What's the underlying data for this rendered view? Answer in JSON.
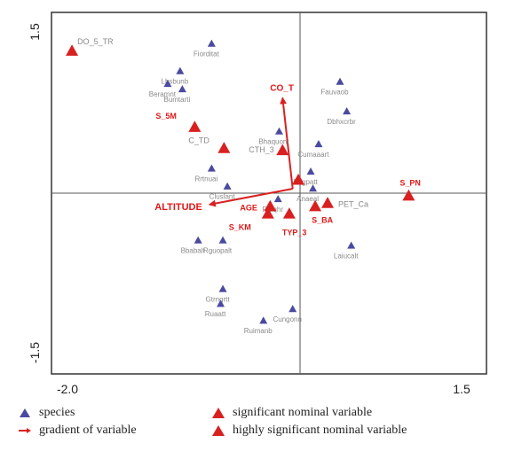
{
  "chart_data": {
    "type": "scatter",
    "subtype": "CCA ordination biplot",
    "xlim": [
      -2.0,
      1.5
    ],
    "ylim": [
      -1.5,
      1.5
    ],
    "x_tick_labels": [
      "-2.0",
      "1.5"
    ],
    "y_tick_labels": [
      "-1.5",
      "1.5"
    ],
    "grid": false,
    "colors": {
      "species": "#4a4aa0",
      "nominal": "#d92020",
      "gradient": "#d92020",
      "labels_red": "#e01818",
      "labels_gray": "#8a8a8a"
    },
    "species": [
      {
        "label": "Fiorditat",
        "x": -0.72,
        "y": 1.37
      },
      {
        "label": "Lbsbunb",
        "x": -1.0,
        "y": 1.11
      },
      {
        "label": "Beramnt",
        "x": -1.11,
        "y": 0.99
      },
      {
        "label": "Bumtarti",
        "x": -0.98,
        "y": 0.94
      },
      {
        "label": "Fauvaob",
        "x": 0.42,
        "y": 1.01
      },
      {
        "label": "Dbhxcrbr",
        "x": 0.48,
        "y": 0.73
      },
      {
        "label": "Bhaquont",
        "x": -0.12,
        "y": 0.54
      },
      {
        "label": "Cumaaart",
        "x": 0.23,
        "y": 0.42
      },
      {
        "label": "Rrtnuai",
        "x": -0.72,
        "y": 0.19
      },
      {
        "label": "Cluslant",
        "x": -0.58,
        "y": 0.02
      },
      {
        "label": "Sngpatt",
        "x": 0.16,
        "y": 0.16
      },
      {
        "label": "Ruiqhr",
        "x": -0.13,
        "y": -0.1
      },
      {
        "label": "Anaeal",
        "x": 0.18,
        "y": 0.0
      },
      {
        "label": "Bbabalt",
        "x": -0.84,
        "y": -0.49
      },
      {
        "label": "Rguopalt",
        "x": -0.62,
        "y": -0.49
      },
      {
        "label": "Laiucalt",
        "x": 0.52,
        "y": -0.54
      },
      {
        "label": "Gtrngrtt",
        "x": -0.62,
        "y": -0.95
      },
      {
        "label": "Ruaatt",
        "x": -0.64,
        "y": -1.09
      },
      {
        "label": "Cungonn",
        "x": 0.0,
        "y": -1.14
      },
      {
        "label": "Ruimanb",
        "x": -0.26,
        "y": -1.25
      }
    ],
    "nominal_variables": [
      {
        "label": "DO_5_TR",
        "x": -1.96,
        "y": 1.3
      },
      {
        "label": "S_5M",
        "x": -0.87,
        "y": 0.58
      },
      {
        "label": "C_TD",
        "x": -0.61,
        "y": 0.38
      },
      {
        "label": "CTH_3",
        "x": -0.09,
        "y": 0.36
      },
      {
        "label": "S_PN",
        "x": 1.03,
        "y": -0.07
      },
      {
        "label": "AGE",
        "x": -0.2,
        "y": -0.17
      },
      {
        "label": "S_KM",
        "x": -0.22,
        "y": -0.24
      },
      {
        "label": "S_BA",
        "x": 0.2,
        "y": -0.17
      },
      {
        "label": "TYP_3",
        "x": -0.03,
        "y": -0.24
      },
      {
        "label": "PET_Ca",
        "x": 0.31,
        "y": -0.14
      },
      {
        "label": "",
        "x": 0.05,
        "y": 0.08
      }
    ],
    "gradients": [
      {
        "label": "CO_T",
        "x": -0.09,
        "y": 0.86
      },
      {
        "label": "ALTITUDE",
        "x": -0.74,
        "y": -0.15
      }
    ],
    "legend": {
      "species": "species",
      "gradient": "gradient of variable",
      "significant": "significant nominal variable",
      "highly_significant": "highly significant nominal variable"
    }
  }
}
